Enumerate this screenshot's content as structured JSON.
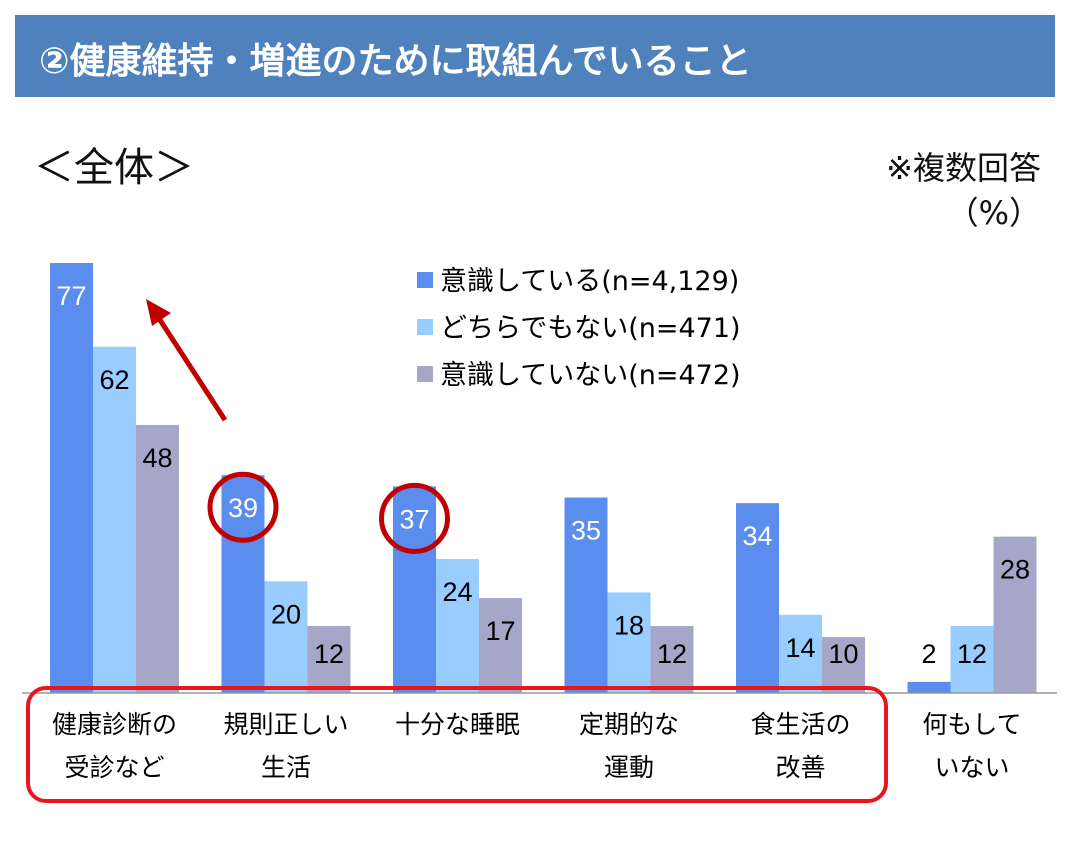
{
  "header": {
    "title": "②健康維持・増進のために取組んでいること"
  },
  "subtitle": "＜全体＞",
  "notes": {
    "multiple": "※複数回答",
    "unit": "（%）"
  },
  "chart_data": {
    "type": "bar",
    "title": "②健康維持・増進のために取組んでいること",
    "categories": [
      [
        "健康診断の",
        "受診など"
      ],
      [
        "規則正しい",
        "生活"
      ],
      [
        "十分な睡眠",
        ""
      ],
      [
        "定期的な",
        "運動"
      ],
      [
        "食生活の",
        "改善"
      ],
      [
        "何もして",
        "いない"
      ]
    ],
    "series": [
      {
        "name": "意識している(n=4,129)",
        "color": "#5B8DEF",
        "label_color": "#ffffff",
        "values": [
          77,
          39,
          37,
          35,
          34,
          2
        ]
      },
      {
        "name": "どちらでもない(n=471)",
        "color": "#99CCFF",
        "label_color": "#000000",
        "values": [
          62,
          20,
          24,
          18,
          14,
          12
        ]
      },
      {
        "name": "意識していない(n=472)",
        "color": "#A6A6C8",
        "label_color": "#000000",
        "values": [
          48,
          12,
          17,
          12,
          10,
          28
        ]
      }
    ],
    "ylim": [
      0,
      80
    ],
    "legend": "top-center",
    "annotations": {
      "circled": [
        {
          "category": 1,
          "series": 0
        },
        {
          "category": 2,
          "series": 0
        }
      ],
      "highlight_color": "#C00000",
      "boxed_categories": [
        0,
        1,
        2,
        3,
        4
      ],
      "arrow": "from 規則正しい生活 toward 健康診断の受診など"
    }
  }
}
